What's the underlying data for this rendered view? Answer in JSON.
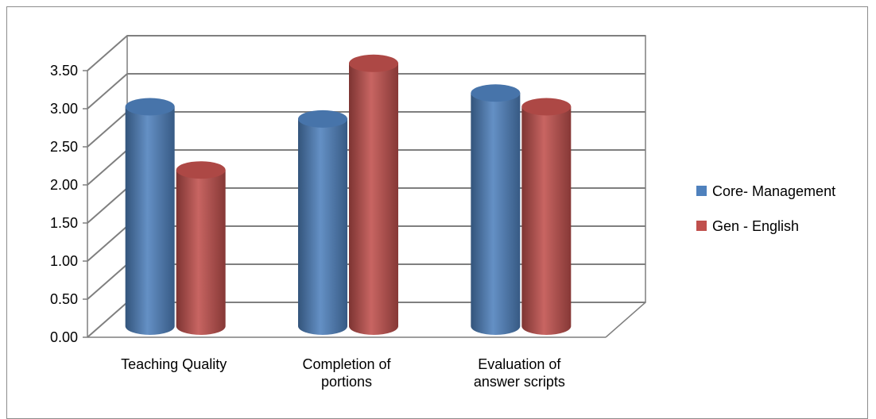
{
  "chart_data": {
    "type": "bar",
    "style": "3d-cylinder",
    "categories": [
      [
        "Teaching Quality"
      ],
      [
        "Completion of",
        "portions"
      ],
      [
        "Evaluation of",
        "answer scripts"
      ]
    ],
    "series": [
      {
        "name": "Core- Management",
        "values": [
          2.88,
          2.72,
          3.06
        ],
        "color": "#4f81bd"
      },
      {
        "name": "Gen - English",
        "values": [
          2.05,
          3.45,
          2.88
        ],
        "color": "#c0504d"
      }
    ],
    "y_ticks": [
      "0.00",
      "0.50",
      "1.00",
      "1.50",
      "2.00",
      "2.50",
      "3.00",
      "3.50"
    ],
    "ylim": [
      0,
      3.5
    ],
    "ytick_step": 0.5,
    "grid": true,
    "legend": "right"
  }
}
